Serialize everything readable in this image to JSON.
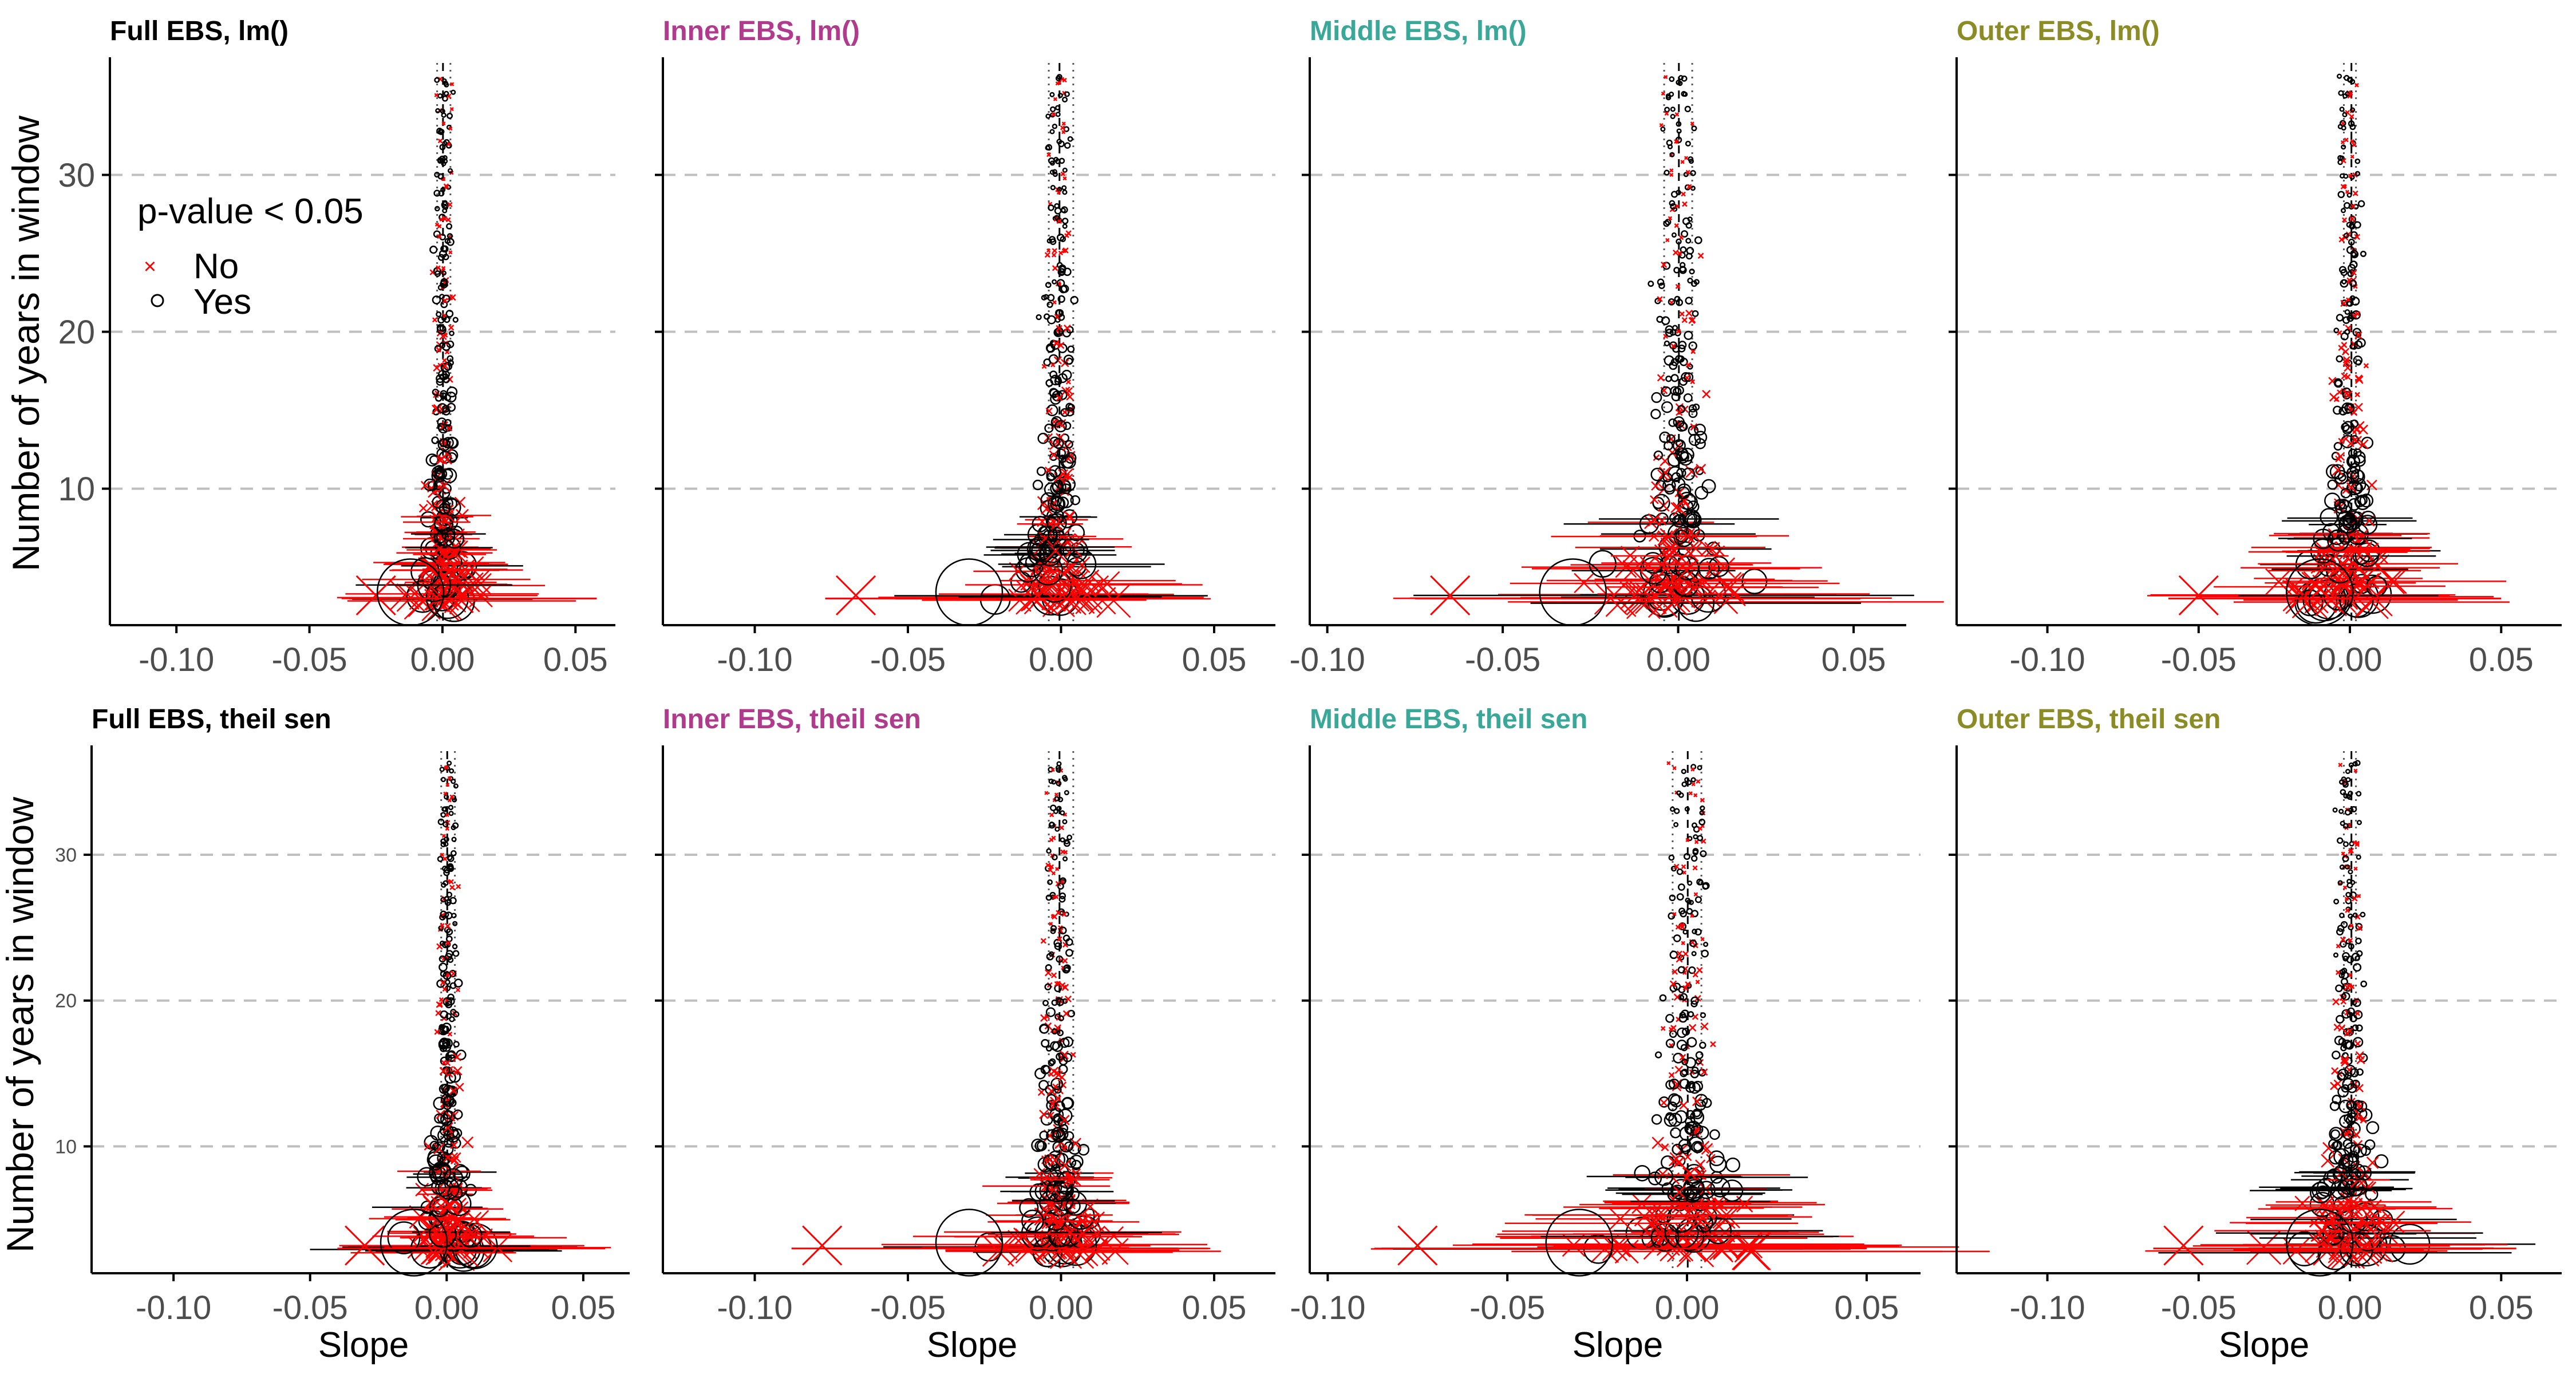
{
  "figure": {
    "ylabel": "Number of years in window",
    "xlabel": "Slope",
    "legend": {
      "title": "p-value < 0.05",
      "entries": [
        {
          "label": "No",
          "shape": "x-cross",
          "color": "#ff0000"
        },
        {
          "label": "Yes",
          "shape": "open-circle",
          "color": "#000000"
        }
      ],
      "placement": "top-left, inside first panel"
    },
    "colors": {
      "full": "#000000",
      "inner": "#b03a8c",
      "middle": "#3aa898",
      "outer": "#8c8c26",
      "not_significant": "#ff0000",
      "significant": "#000000",
      "grid": "#bfbfbf"
    }
  },
  "chart_data": [
    {
      "type": "scatter",
      "panel_key": "full_lm",
      "title": "Full EBS, lm()",
      "title_color": "#000000",
      "xlim": [
        -0.125,
        0.065
      ],
      "ylim": [
        1.3,
        37.5
      ],
      "x_ticks": [
        "-0.10",
        "-0.05",
        "0.00",
        "0.05"
      ],
      "y_ticks": [
        "10",
        "20",
        "30"
      ],
      "grid_y": [
        10,
        20,
        30
      ],
      "ref_lines": {
        "mean": 0.0002,
        "ci": [
          -0.002,
          0.003
        ]
      },
      "spread": 0.025,
      "center_low": -0.002,
      "center_high": 0.003,
      "sig_from": 5,
      "max_n": 36,
      "big_x_left": -0.035,
      "big_x_right": 0.058,
      "big_circle_left": -0.012
    },
    {
      "type": "scatter",
      "panel_key": "inner_lm",
      "title": "Inner EBS, lm()",
      "title_color": "#b03a8c",
      "xlim": [
        -0.13,
        0.07
      ],
      "ylim": [
        1.3,
        37.5
      ],
      "x_ticks": [
        "-0.10",
        "-0.05",
        "0.00",
        "0.05"
      ],
      "y_ticks": [],
      "grid_y": [
        10,
        20,
        30
      ],
      "ref_lines": {
        "mean": -0.0005,
        "ci": [
          -0.004,
          0.004
        ]
      },
      "spread": 0.03,
      "center_low": -0.004,
      "center_high": 0.002,
      "sig_from": 3,
      "max_n": 36,
      "big_x_left": -0.077,
      "big_x_right": 0.045,
      "big_circle_left": -0.03
    },
    {
      "type": "scatter",
      "panel_key": "middle_lm",
      "title": "Middle EBS, lm()",
      "title_color": "#3aa898",
      "xlim": [
        -0.105,
        0.065
      ],
      "ylim": [
        1.3,
        37.5
      ],
      "x_ticks": [
        "-0.10",
        "-0.05",
        "0.00",
        "0.05"
      ],
      "y_ticks": [],
      "grid_y": [
        10,
        20,
        30
      ],
      "ref_lines": {
        "mean": 0.0002,
        "ci": [
          -0.004,
          0.004
        ]
      },
      "spread": 0.04,
      "center_low": -0.004,
      "center_high": 0.004,
      "sig_from": 4,
      "max_n": 36,
      "big_x_left": -0.075,
      "big_x_right": 0.052,
      "big_circle_left": -0.03
    },
    {
      "type": "scatter",
      "panel_key": "outer_lm",
      "title": "Outer EBS, lm()",
      "title_color": "#8c8c26",
      "xlim": [
        -0.13,
        0.07
      ],
      "ylim": [
        1.3,
        37.5
      ],
      "x_ticks": [
        "-0.10",
        "-0.05",
        "0.00",
        "0.05"
      ],
      "y_ticks": [],
      "grid_y": [
        10,
        20,
        30
      ],
      "ref_lines": {
        "mean": 0.0005,
        "ci": [
          -0.002,
          0.002
        ]
      },
      "spread": 0.035,
      "center_low": -0.003,
      "center_high": 0.002,
      "sig_from": 4,
      "max_n": 36,
      "big_x_left": -0.06,
      "big_x_right": 0.05,
      "big_circle_left": -0.01
    },
    {
      "type": "scatter",
      "panel_key": "full_ts",
      "title": "Full EBS, theil sen",
      "title_color": "#000000",
      "xlim": [
        -0.13,
        0.067
      ],
      "ylim": [
        1.3,
        37.5
      ],
      "x_ticks": [
        "-0.10",
        "-0.05",
        "0.00",
        "0.05"
      ],
      "y_ticks": [
        "10",
        "20",
        "30"
      ],
      "grid_y": [
        10,
        20,
        30
      ],
      "ref_lines": {
        "mean": 0.0002,
        "ci": [
          -0.002,
          0.003
        ]
      },
      "spread": 0.025,
      "center_low": -0.002,
      "center_high": 0.003,
      "sig_from": 5,
      "max_n": 36,
      "big_x_left": -0.04,
      "big_x_right": 0.058,
      "big_circle_left": -0.012
    },
    {
      "type": "scatter",
      "panel_key": "inner_ts",
      "title": "Inner EBS, theil sen",
      "title_color": "#b03a8c",
      "xlim": [
        -0.13,
        0.07
      ],
      "ylim": [
        1.3,
        37.5
      ],
      "x_ticks": [
        "-0.10",
        "-0.05",
        "0.00",
        "0.05"
      ],
      "y_ticks": [],
      "grid_y": [
        10,
        20,
        30
      ],
      "ref_lines": {
        "mean": -0.0005,
        "ci": [
          -0.004,
          0.004
        ]
      },
      "spread": 0.03,
      "center_low": -0.004,
      "center_high": 0.002,
      "sig_from": 3,
      "max_n": 36,
      "big_x_left": -0.088,
      "big_x_right": 0.048,
      "big_circle_left": -0.03
    },
    {
      "type": "scatter",
      "panel_key": "middle_ts",
      "title": "Middle EBS, theil sen",
      "title_color": "#3aa898",
      "xlim": [
        -0.105,
        0.065
      ],
      "ylim": [
        1.3,
        37.5
      ],
      "x_ticks": [
        "-0.10",
        "-0.05",
        "0.00",
        "0.05"
      ],
      "y_ticks": [],
      "grid_y": [
        10,
        20,
        30
      ],
      "ref_lines": {
        "mean": 0.0002,
        "ci": [
          -0.004,
          0.004
        ]
      },
      "spread": 0.04,
      "center_low": -0.004,
      "center_high": 0.004,
      "sig_from": 4,
      "max_n": 36,
      "big_x_left": -0.085,
      "big_x_right": 0.05,
      "big_circle_left": -0.03
    },
    {
      "type": "scatter",
      "panel_key": "outer_ts",
      "title": "Outer EBS, theil sen",
      "title_color": "#8c8c26",
      "xlim": [
        -0.13,
        0.07
      ],
      "ylim": [
        1.3,
        37.5
      ],
      "x_ticks": [
        "-0.10",
        "-0.05",
        "0.00",
        "0.05"
      ],
      "y_ticks": [],
      "grid_y": [
        10,
        20,
        30
      ],
      "ref_lines": {
        "mean": 0.0005,
        "ci": [
          -0.002,
          0.002
        ]
      },
      "spread": 0.035,
      "center_low": -0.003,
      "center_high": 0.002,
      "sig_from": 4,
      "max_n": 36,
      "big_x_left": -0.065,
      "big_x_right": 0.055,
      "big_circle_left": -0.01
    }
  ]
}
